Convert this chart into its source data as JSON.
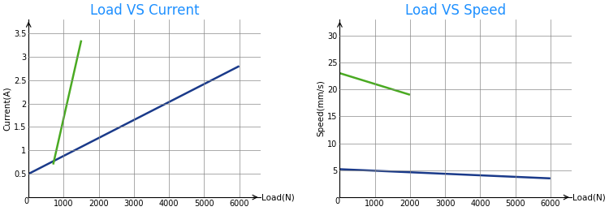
{
  "chart1": {
    "title": "Load VS Current",
    "xlabel": "Load(N)",
    "ylabel": "Current(A)",
    "blue_line": {
      "x": [
        0,
        6000
      ],
      "y": [
        0.5,
        2.8
      ]
    },
    "green_line": {
      "x": [
        700,
        1500
      ],
      "y": [
        0.7,
        3.35
      ]
    },
    "xlim": [
      0,
      6600
    ],
    "ylim": [
      0,
      3.8
    ],
    "yticks": [
      0.5,
      1.0,
      1.5,
      2.0,
      2.5,
      3.0,
      3.5
    ],
    "xticks": [
      1000,
      2000,
      3000,
      4000,
      5000,
      6000
    ],
    "yticklabels": [
      "0.5",
      "1",
      "1.5",
      "2",
      "2.5",
      "3",
      "3.5"
    ],
    "xticklabels": [
      "1000",
      "2000",
      "3000",
      "4000",
      "5000",
      "6000"
    ]
  },
  "chart2": {
    "title": "Load VS Speed",
    "xlabel": "Load(N)",
    "ylabel": "Speed(mm/s)",
    "blue_line": {
      "x": [
        0,
        6000
      ],
      "y": [
        5.2,
        3.5
      ]
    },
    "green_line": {
      "x": [
        0,
        2000
      ],
      "y": [
        23,
        19
      ]
    },
    "xlim": [
      0,
      6600
    ],
    "ylim": [
      0,
      33
    ],
    "yticks": [
      5,
      10,
      15,
      20,
      25,
      30
    ],
    "xticks": [
      1000,
      2000,
      3000,
      4000,
      5000,
      6000
    ],
    "yticklabels": [
      "5",
      "10",
      "15",
      "20",
      "25",
      "30"
    ],
    "xticklabels": [
      "1000",
      "2000",
      "3000",
      "4000",
      "5000",
      "6000"
    ]
  },
  "title_color": "#1E90FF",
  "blue_color": "#1a3a8a",
  "green_color": "#4aaa22",
  "bg_color": "#ffffff",
  "grid_color": "#888888",
  "axis_label_fontsize": 7.5,
  "title_fontsize": 12,
  "tick_fontsize": 7
}
